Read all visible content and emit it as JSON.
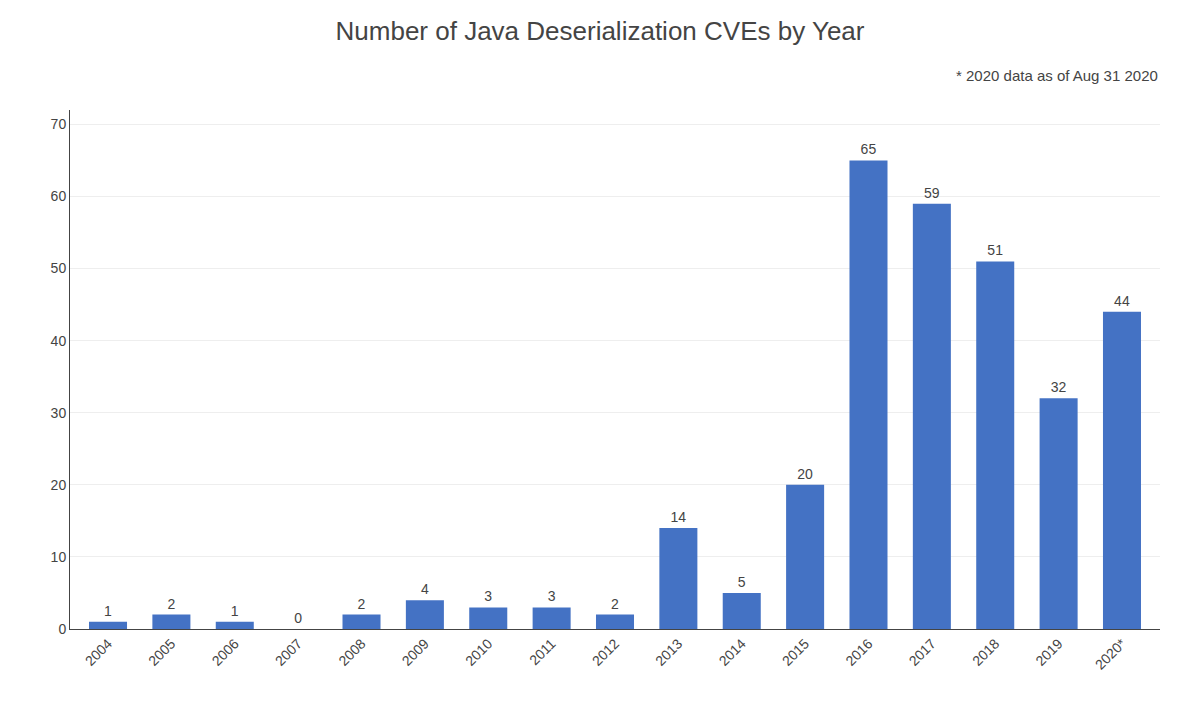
{
  "chart_data": {
    "type": "bar",
    "title": "Number of Java Deserialization CVEs by Year",
    "subtitle": "* 2020 data as of Aug 31 2020",
    "categories": [
      "2004",
      "2005",
      "2006",
      "2007",
      "2008",
      "2009",
      "2010",
      "2011",
      "2012",
      "2013",
      "2014",
      "2015",
      "2016",
      "2017",
      "2018",
      "2019",
      "2020*"
    ],
    "values": [
      1,
      2,
      1,
      0,
      2,
      4,
      3,
      3,
      2,
      14,
      5,
      20,
      65,
      59,
      51,
      32,
      44
    ],
    "color": "#4472C4",
    "ylim": [
      0,
      72
    ],
    "yticks": [
      0,
      10,
      20,
      30,
      40,
      50,
      60,
      70
    ],
    "grid": true,
    "data_labels": true
  }
}
